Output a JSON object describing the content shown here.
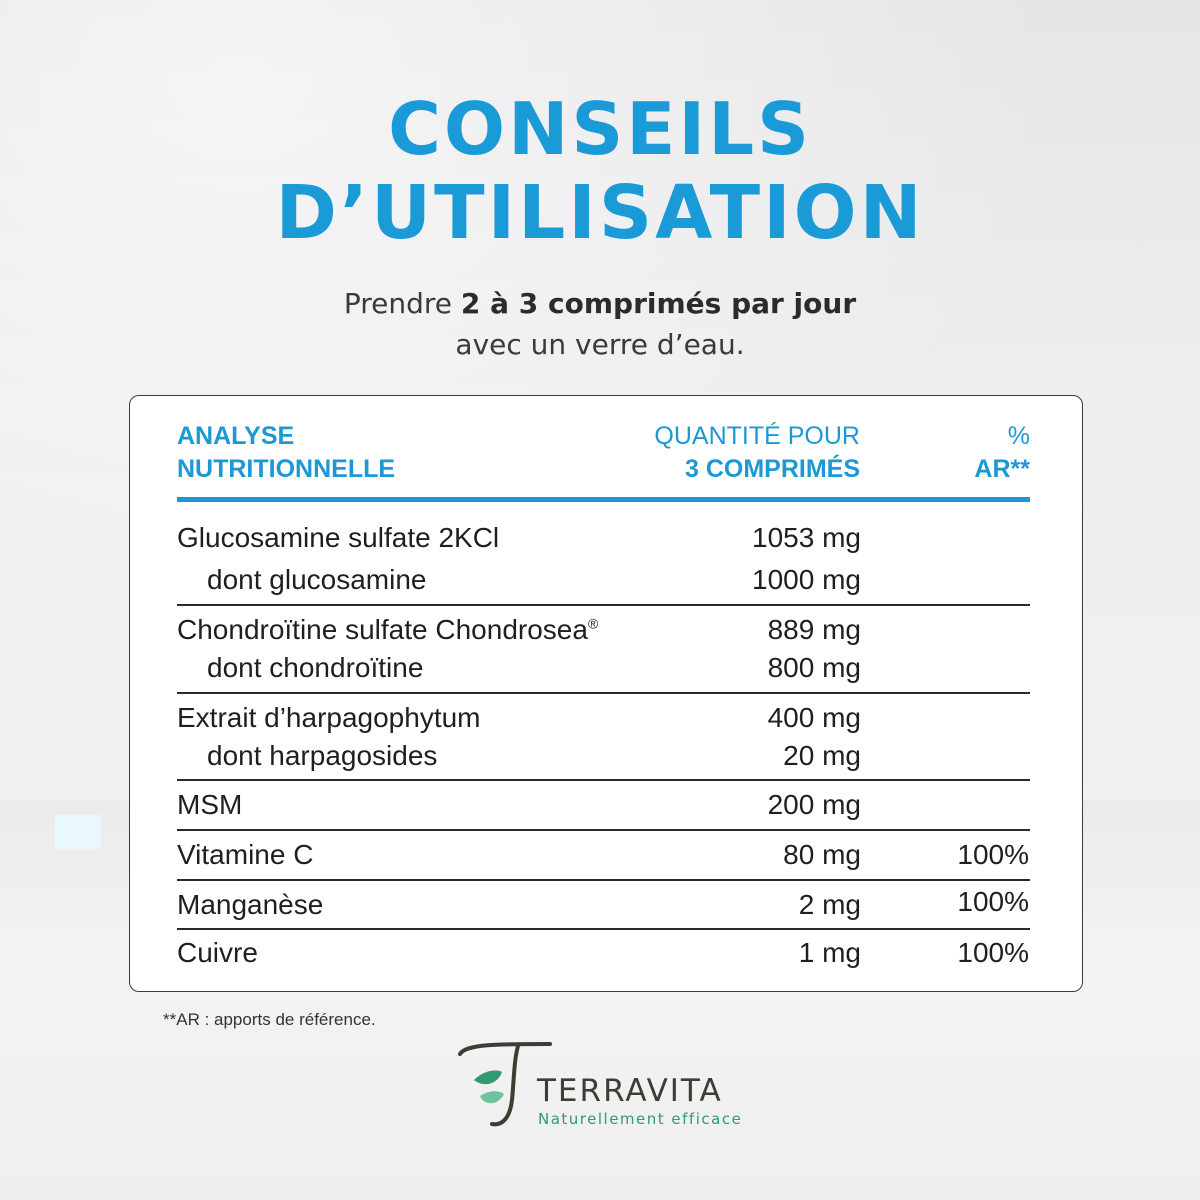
{
  "header": {
    "title_line1": "CONSEILS",
    "title_line2": "D’UTILISATION",
    "subtitle_pre": "Prendre ",
    "subtitle_bold": "2 à 3 comprimés par jour",
    "subtitle_line2": "avec un verre d’eau."
  },
  "table": {
    "headers": {
      "col1_line1": "ANALYSE",
      "col1_line2": "NUTRITIONNELLE",
      "col2_line1": "QUANTITÉ POUR",
      "col2_line2": "3 COMPRIMÉS",
      "col3_line1": "%",
      "col3_line2": "AR**"
    },
    "rows": [
      {
        "name": "Glucosamine sulfate 2KCl",
        "qty": "1053 mg",
        "pct": ""
      },
      {
        "name": "dont glucosamine",
        "qty": "1000 mg",
        "pct": ""
      },
      {
        "name": "Chondroïtine sulfate Chondrosea",
        "sup": "®",
        "qty": "889 mg",
        "pct": ""
      },
      {
        "name": "dont chondroïtine",
        "qty": "800 mg",
        "pct": ""
      },
      {
        "name": "Extrait d’harpagophytum",
        "qty": "400 mg",
        "pct": ""
      },
      {
        "name": "dont harpagosides",
        "qty": "20 mg",
        "pct": ""
      },
      {
        "name": "MSM",
        "qty": "200 mg",
        "pct": ""
      },
      {
        "name": "Vitamine C",
        "qty": "80 mg",
        "pct": "100%"
      },
      {
        "name": "Manganèse",
        "qty": "2 mg",
        "pct": "100%"
      },
      {
        "name": "Cuivre",
        "qty": "1 mg",
        "pct": "100%"
      }
    ]
  },
  "footnote": "**AR : apports de référence.",
  "brand": {
    "name": "TERRAVITA",
    "tagline": "Naturellement efficace",
    "logo_icon": "leaf-t-logo-icon"
  },
  "colors": {
    "accent": "#1a9ad7",
    "brand_green": "#2f9b6e",
    "brand_dark": "#3a3f33"
  }
}
